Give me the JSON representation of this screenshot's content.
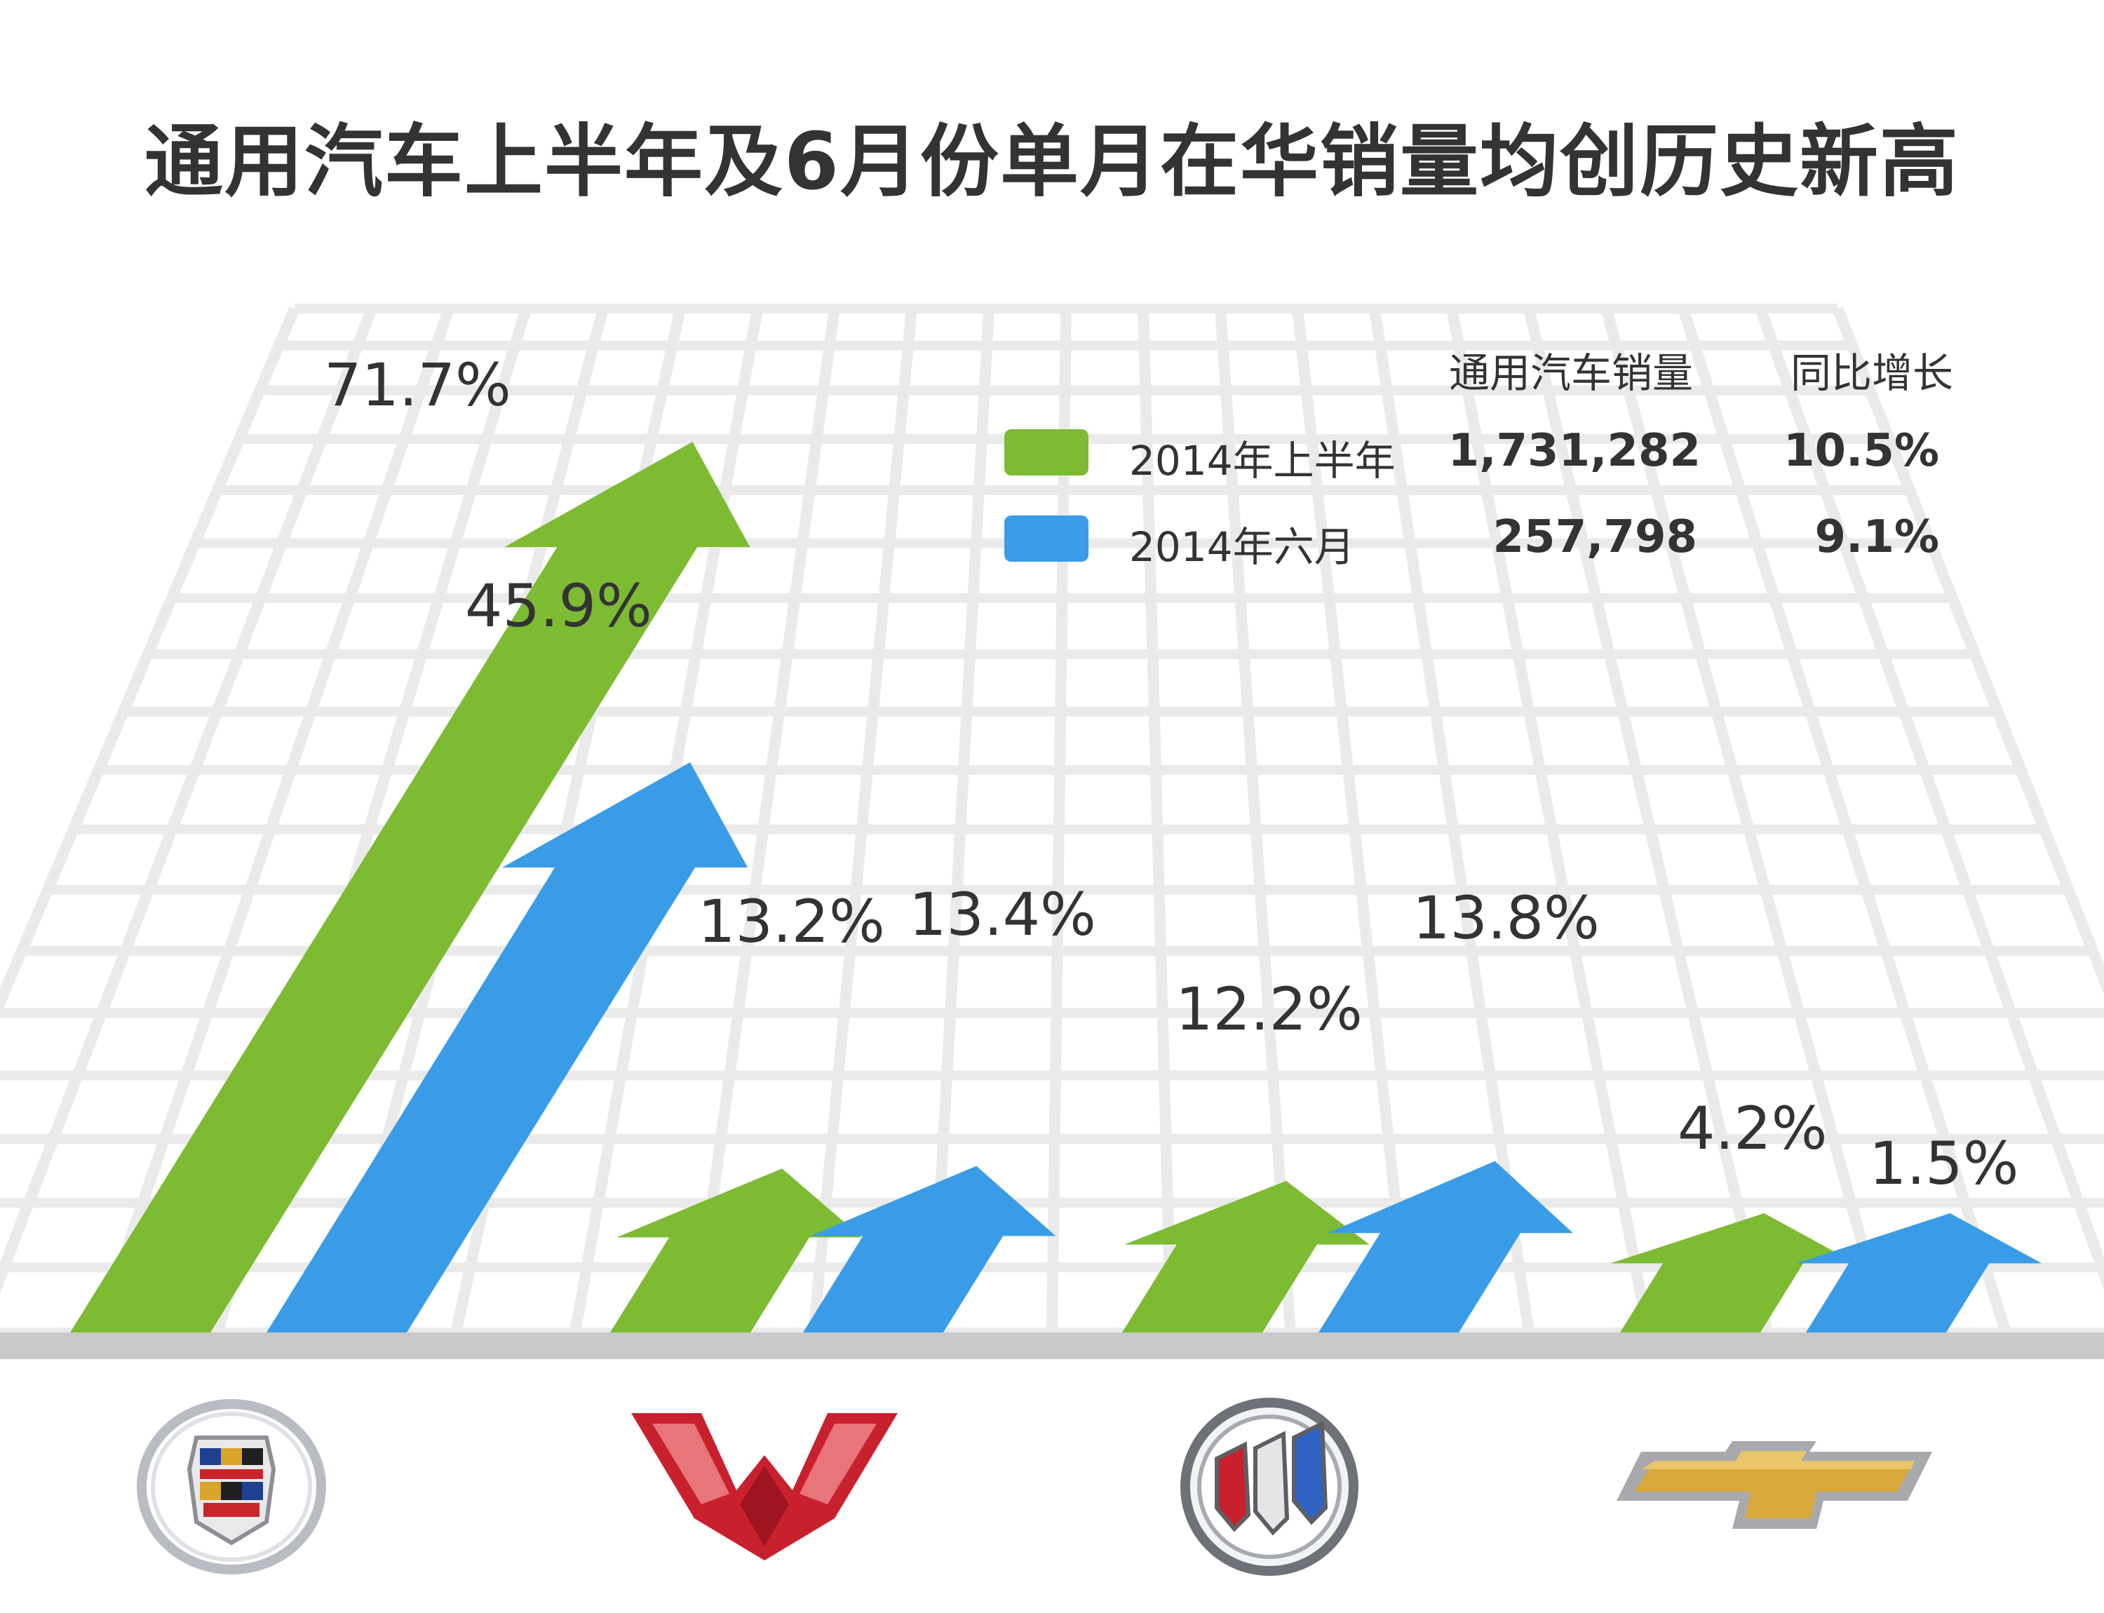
{
  "title": "通用汽车上半年及6月份单月在华销量均创历史新高",
  "legend": {
    "header_sales": "通用汽车销量",
    "header_growth": "同比增长",
    "rows": [
      {
        "label": "2014年上半年",
        "sales": "1,731,282",
        "growth": "10.5%",
        "color": "#7dbb33"
      },
      {
        "label": "2014年六月",
        "sales": "257,798",
        "growth": "9.1%",
        "color": "#3a9ce6"
      }
    ]
  },
  "chart_data": {
    "type": "bar",
    "title": "通用汽车上半年及6月份单月在华销量均创历史新高",
    "categories": [
      "Cadillac",
      "Wuling",
      "Buick",
      "Chevrolet"
    ],
    "series": [
      {
        "name": "2014年上半年",
        "values": [
          71.7,
          13.2,
          12.2,
          4.2
        ],
        "labels": [
          "71.7%",
          "13.2%",
          "12.2%",
          "4.2%"
        ],
        "color": "#7dbb33"
      },
      {
        "name": "2014年六月",
        "values": [
          45.9,
          13.4,
          13.8,
          1.5
        ],
        "labels": [
          "45.9%",
          "13.4%",
          "13.8%",
          "1.5%"
        ],
        "color": "#3a9ce6"
      }
    ],
    "grid": true,
    "legend_position": "top-right"
  },
  "logos": [
    {
      "name": "cadillac-logo"
    },
    {
      "name": "wuling-logo"
    },
    {
      "name": "buick-logo"
    },
    {
      "name": "chevrolet-logo"
    }
  ],
  "colors": {
    "green": "#7dbb33",
    "blue": "#3a9ce6",
    "baseline": "#c9c9c9",
    "grid": "#eaeaea"
  }
}
